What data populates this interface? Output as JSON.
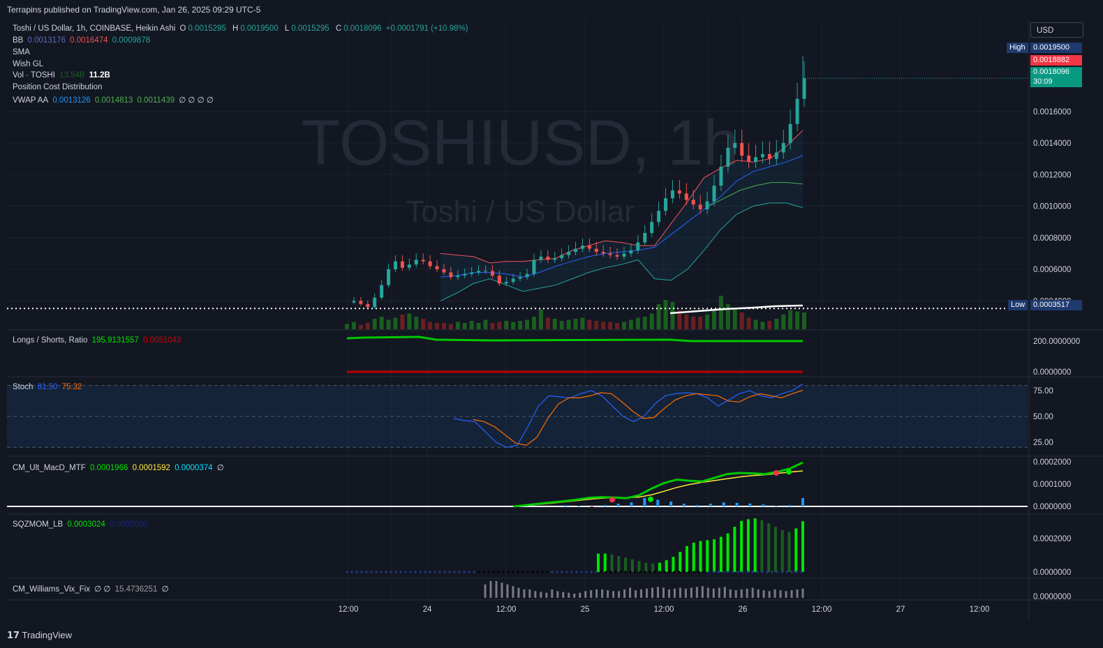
{
  "publisher": "Terrapins published on TradingView.com, Jan 26, 2025 09:29 UTC-5",
  "footer_brand": "TradingView",
  "currency_button": "USD",
  "watermark": {
    "symbol": "TOSHIUSD, 1h",
    "name": "Toshi / US Dollar"
  },
  "colors": {
    "up": "#26a69a",
    "down": "#ef5350",
    "bg": "#131722",
    "grid": "#1e222d"
  },
  "legend": {
    "main": {
      "title": "Toshi / US Dollar, 1h, COINBASE, Heikin Ashi",
      "o_label": "O",
      "o": "0.0015295",
      "h_label": "H",
      "h": "0.0019500",
      "l_label": "L",
      "l": "0.0015295",
      "c_label": "C",
      "c": "0.0018096",
      "chg": "+0.0001791 (+10.98%)"
    },
    "bb": {
      "label": "BB",
      "v1": "0.0013176",
      "v2": "0.0016474",
      "v3": "0.0009878"
    },
    "sma": "SMA",
    "wish": "Wish GL",
    "vol": {
      "label": "Vol · TOSHI",
      "v1": "13.54B",
      "v2": "11.2B"
    },
    "pcd": "Position Cost Distribution",
    "vwap": {
      "label": "VWAP AA",
      "v1": "0.0013126",
      "v2": "0.0014813",
      "v3": "0.0011439",
      "rest": "∅ ∅ ∅ ∅"
    },
    "ls": {
      "label": "Longs / Shorts, Ratio",
      "v1": "195.9131557",
      "v2": "0.0051043"
    },
    "stoch": {
      "label": "Stoch",
      "v1": "81.50",
      "v2": "75.32"
    },
    "macd": {
      "label": "CM_Ult_MacD_MTF",
      "v1": "0.0001966",
      "v2": "0.0001592",
      "v3": "0.0000374",
      "v4": "∅"
    },
    "sqz": {
      "label": "SQZMOM_LB",
      "v1": "0.0003024",
      "v2": "0.0000000"
    },
    "vix": {
      "label": "CM_Williams_Vix_Fix",
      "v1": "∅ ∅",
      "v2": "15.4736251",
      "v3": "∅"
    }
  },
  "price_tags": {
    "high_label": "High",
    "high": "0.0019500",
    "prev": "0.0018882",
    "last": "0.0018096",
    "countdown": "30:09",
    "low_label": "Low",
    "low": "0.0003517"
  },
  "chart_data": {
    "type": "candlestick",
    "title": "Toshi / US Dollar, 1h, COINBASE, Heikin Ashi",
    "x_ticks": [
      "12:00",
      "24",
      "12:00",
      "25",
      "12:00",
      "26",
      "12:00",
      "27",
      "12:00"
    ],
    "y_ticks": [
      "0.0004000",
      "0.0006000",
      "0.0008000",
      "0.0010000",
      "0.0012000",
      "0.0014000",
      "0.0016000"
    ],
    "ylim": [
      0.00022,
      0.00205
    ],
    "close_path": [
      0.00039,
      0.0004,
      0.00038,
      0.00036,
      0.00042,
      0.0005,
      0.0006,
      0.00065,
      0.00061,
      0.00063,
      0.00066,
      0.00065,
      0.00062,
      0.0006,
      0.00058,
      0.00055,
      0.00056,
      0.00057,
      0.00058,
      0.00059,
      0.00059,
      0.00056,
      0.00051,
      0.00052,
      0.00054,
      0.00055,
      0.00057,
      0.00066,
      0.00068,
      0.00066,
      0.00067,
      0.00069,
      0.00071,
      0.00073,
      0.00075,
      0.00073,
      0.00071,
      0.0007,
      0.00069,
      0.00068,
      0.0007,
      0.00072,
      0.00077,
      0.00083,
      0.0009,
      0.00097,
      0.00105,
      0.0011,
      0.00108,
      0.00104,
      0.00101,
      0.00098,
      0.00103,
      0.00113,
      0.00125,
      0.00137,
      0.0014,
      0.00132,
      0.00128,
      0.00131,
      0.00133,
      0.0013,
      0.00134,
      0.0014,
      0.00152,
      0.00168,
      0.00181
    ],
    "bb_upper": [
      0.0007,
      0.00069,
      0.00068,
      0.00064,
      0.00065,
      0.00065,
      0.00066,
      0.00067,
      0.00072,
      0.00075,
      0.00078,
      0.00077,
      0.00075,
      0.00075,
      0.00089,
      0.00103,
      0.00118,
      0.00124,
      0.00129,
      0.00128,
      0.0013,
      0.00138,
      0.00148
    ],
    "bb_basis": [
      0.00055,
      0.00056,
      0.00058,
      0.00058,
      0.00057,
      0.00055,
      0.00058,
      0.00062,
      0.00065,
      0.00068,
      0.0007,
      0.00071,
      0.00072,
      0.00074,
      0.00082,
      0.0009,
      0.00098,
      0.00106,
      0.00116,
      0.00122,
      0.00125,
      0.00128,
      0.00132
    ],
    "bb_lower": [
      0.0004,
      0.00045,
      0.00051,
      0.00054,
      0.0005,
      0.00046,
      0.00048,
      0.0005,
      0.00054,
      0.00058,
      0.00061,
      0.00063,
      0.00066,
      0.00054,
      0.00053,
      0.0006,
      0.00072,
      0.00085,
      0.00095,
      0.001,
      0.00102,
      0.00102,
      0.00099
    ],
    "sma": [
      0.001,
      0.00105,
      0.0011,
      0.00113,
      0.00115,
      0.00115,
      0.00114
    ],
    "volume_path": [
      0.25,
      0.35,
      0.2,
      0.3,
      0.5,
      0.6,
      0.45,
      0.55,
      0.7,
      0.75,
      0.6,
      0.5,
      0.35,
      0.3,
      0.3,
      0.25,
      0.35,
      0.3,
      0.4,
      0.3,
      0.45,
      0.3,
      0.35,
      0.4,
      0.35,
      0.4,
      0.45,
      0.6,
      0.95,
      0.55,
      0.5,
      0.4,
      0.45,
      0.5,
      0.55,
      0.45,
      0.4,
      0.35,
      0.35,
      0.3,
      0.35,
      0.45,
      0.55,
      0.6,
      0.75,
      1.2,
      1.4,
      1.3,
      0.9,
      0.7,
      0.6,
      0.6,
      0.7,
      0.9,
      1.6,
      1.2,
      1.0,
      0.8,
      0.55,
      0.45,
      0.35,
      0.4,
      0.5,
      0.7,
      0.9,
      0.85,
      0.8
    ],
    "longs_shorts": {
      "long_level": 195.9131557,
      "short_level": 0.0051043,
      "ticks": [
        "200.0000000",
        "0.0000000"
      ]
    },
    "stoch": {
      "ticks": [
        "75.00",
        "50.00",
        "25.00"
      ],
      "k": [
        48,
        46,
        45,
        35,
        25,
        20,
        22,
        40,
        60,
        70,
        69,
        68,
        72,
        75,
        70,
        60,
        50,
        45,
        50,
        62,
        70,
        72,
        73,
        72,
        68,
        60,
        66,
        72,
        75,
        70,
        68,
        72,
        75,
        81.5
      ],
      "d": [
        47,
        45,
        40,
        32,
        24,
        22,
        30,
        48,
        62,
        68,
        68,
        70,
        73,
        72,
        64,
        55,
        48,
        49,
        58,
        66,
        70,
        72,
        71,
        70,
        65,
        64,
        69,
        72,
        70,
        68,
        72,
        75.32
      ]
    },
    "macd": {
      "ticks": [
        "0.0002000",
        "0.0001000",
        "0.0000000"
      ],
      "macd": [
        0.0,
        5e-06,
        1.2e-05,
        1.8e-05,
        2.3e-05,
        3e-05,
        3.8e-05,
        4.2e-05,
        4e-05,
        3.7e-05,
        5e-05,
        8e-05,
        0.000105,
        0.00012,
        0.000115,
        0.000112,
        0.000128,
        0.000145,
        0.00015,
        0.000148,
        0.000145,
        0.000155,
        0.00017,
        0.0001966
      ],
      "signal": [
        0.0,
        4e-06,
        9e-06,
        1.4e-05,
        2e-05,
        2.6e-05,
        3.2e-05,
        3.7e-05,
        3.9e-05,
        3.9e-05,
        4.2e-05,
        5.2e-05,
        6.8e-05,
        8.5e-05,
        9.8e-05,
        0.000108,
        0.000116,
        0.000124,
        0.000132,
        0.000138,
        0.000142,
        0.000148,
        0.000154,
        0.0001592
      ],
      "hist": [
        5e-06,
        3e-06,
        -1e-06,
        6e-06,
        1.2e-05,
        1.8e-05,
        3.8e-05,
        3e-05,
        2.2e-05,
        1.2e-05,
        6e-06,
        1.2e-05,
        1.8e-05,
        1.6e-05,
        1.3e-05,
        9e-06,
        4e-06,
        6e-06,
        3.74e-05
      ]
    },
    "sqzmom": {
      "ticks": [
        "0.0002000",
        "0.0000000"
      ],
      "bars": [
        0.00011,
        0.00011,
        0.000105,
        9.5e-05,
        8.5e-05,
        7.5e-05,
        6.5e-05,
        5.5e-05,
        5e-05,
        5.5e-05,
        7e-05,
        9e-05,
        0.00012,
        0.000155,
        0.000175,
        0.000185,
        0.00019,
        0.000195,
        0.00021,
        0.00023,
        0.00027,
        0.000305,
        0.000315,
        0.00032,
        0.00031,
        0.00029,
        0.00027,
        0.00025,
        0.00024,
        0.00026,
        0.0003024
      ]
    },
    "vix": {
      "ticks": [
        "0.0000000"
      ],
      "bars": [
        0.8,
        1.0,
        1.0,
        0.9,
        0.8,
        0.7,
        0.6,
        0.5,
        0.5,
        0.4,
        0.35,
        0.3,
        0.5,
        0.4,
        0.35,
        0.3,
        0.25,
        0.3,
        0.4,
        0.45,
        0.5,
        0.5,
        0.45,
        0.4,
        0.4,
        0.5,
        0.6,
        0.45,
        0.5,
        0.55,
        0.6,
        0.65,
        0.6,
        0.5,
        0.55,
        0.6,
        0.55,
        0.6,
        0.65,
        0.7,
        0.6,
        0.55,
        0.6,
        0.65,
        0.5,
        0.45,
        0.5,
        0.55,
        0.6,
        0.5,
        0.45,
        0.4,
        0.5,
        0.45,
        0.4,
        0.45,
        0.5,
        0.55
      ]
    }
  }
}
